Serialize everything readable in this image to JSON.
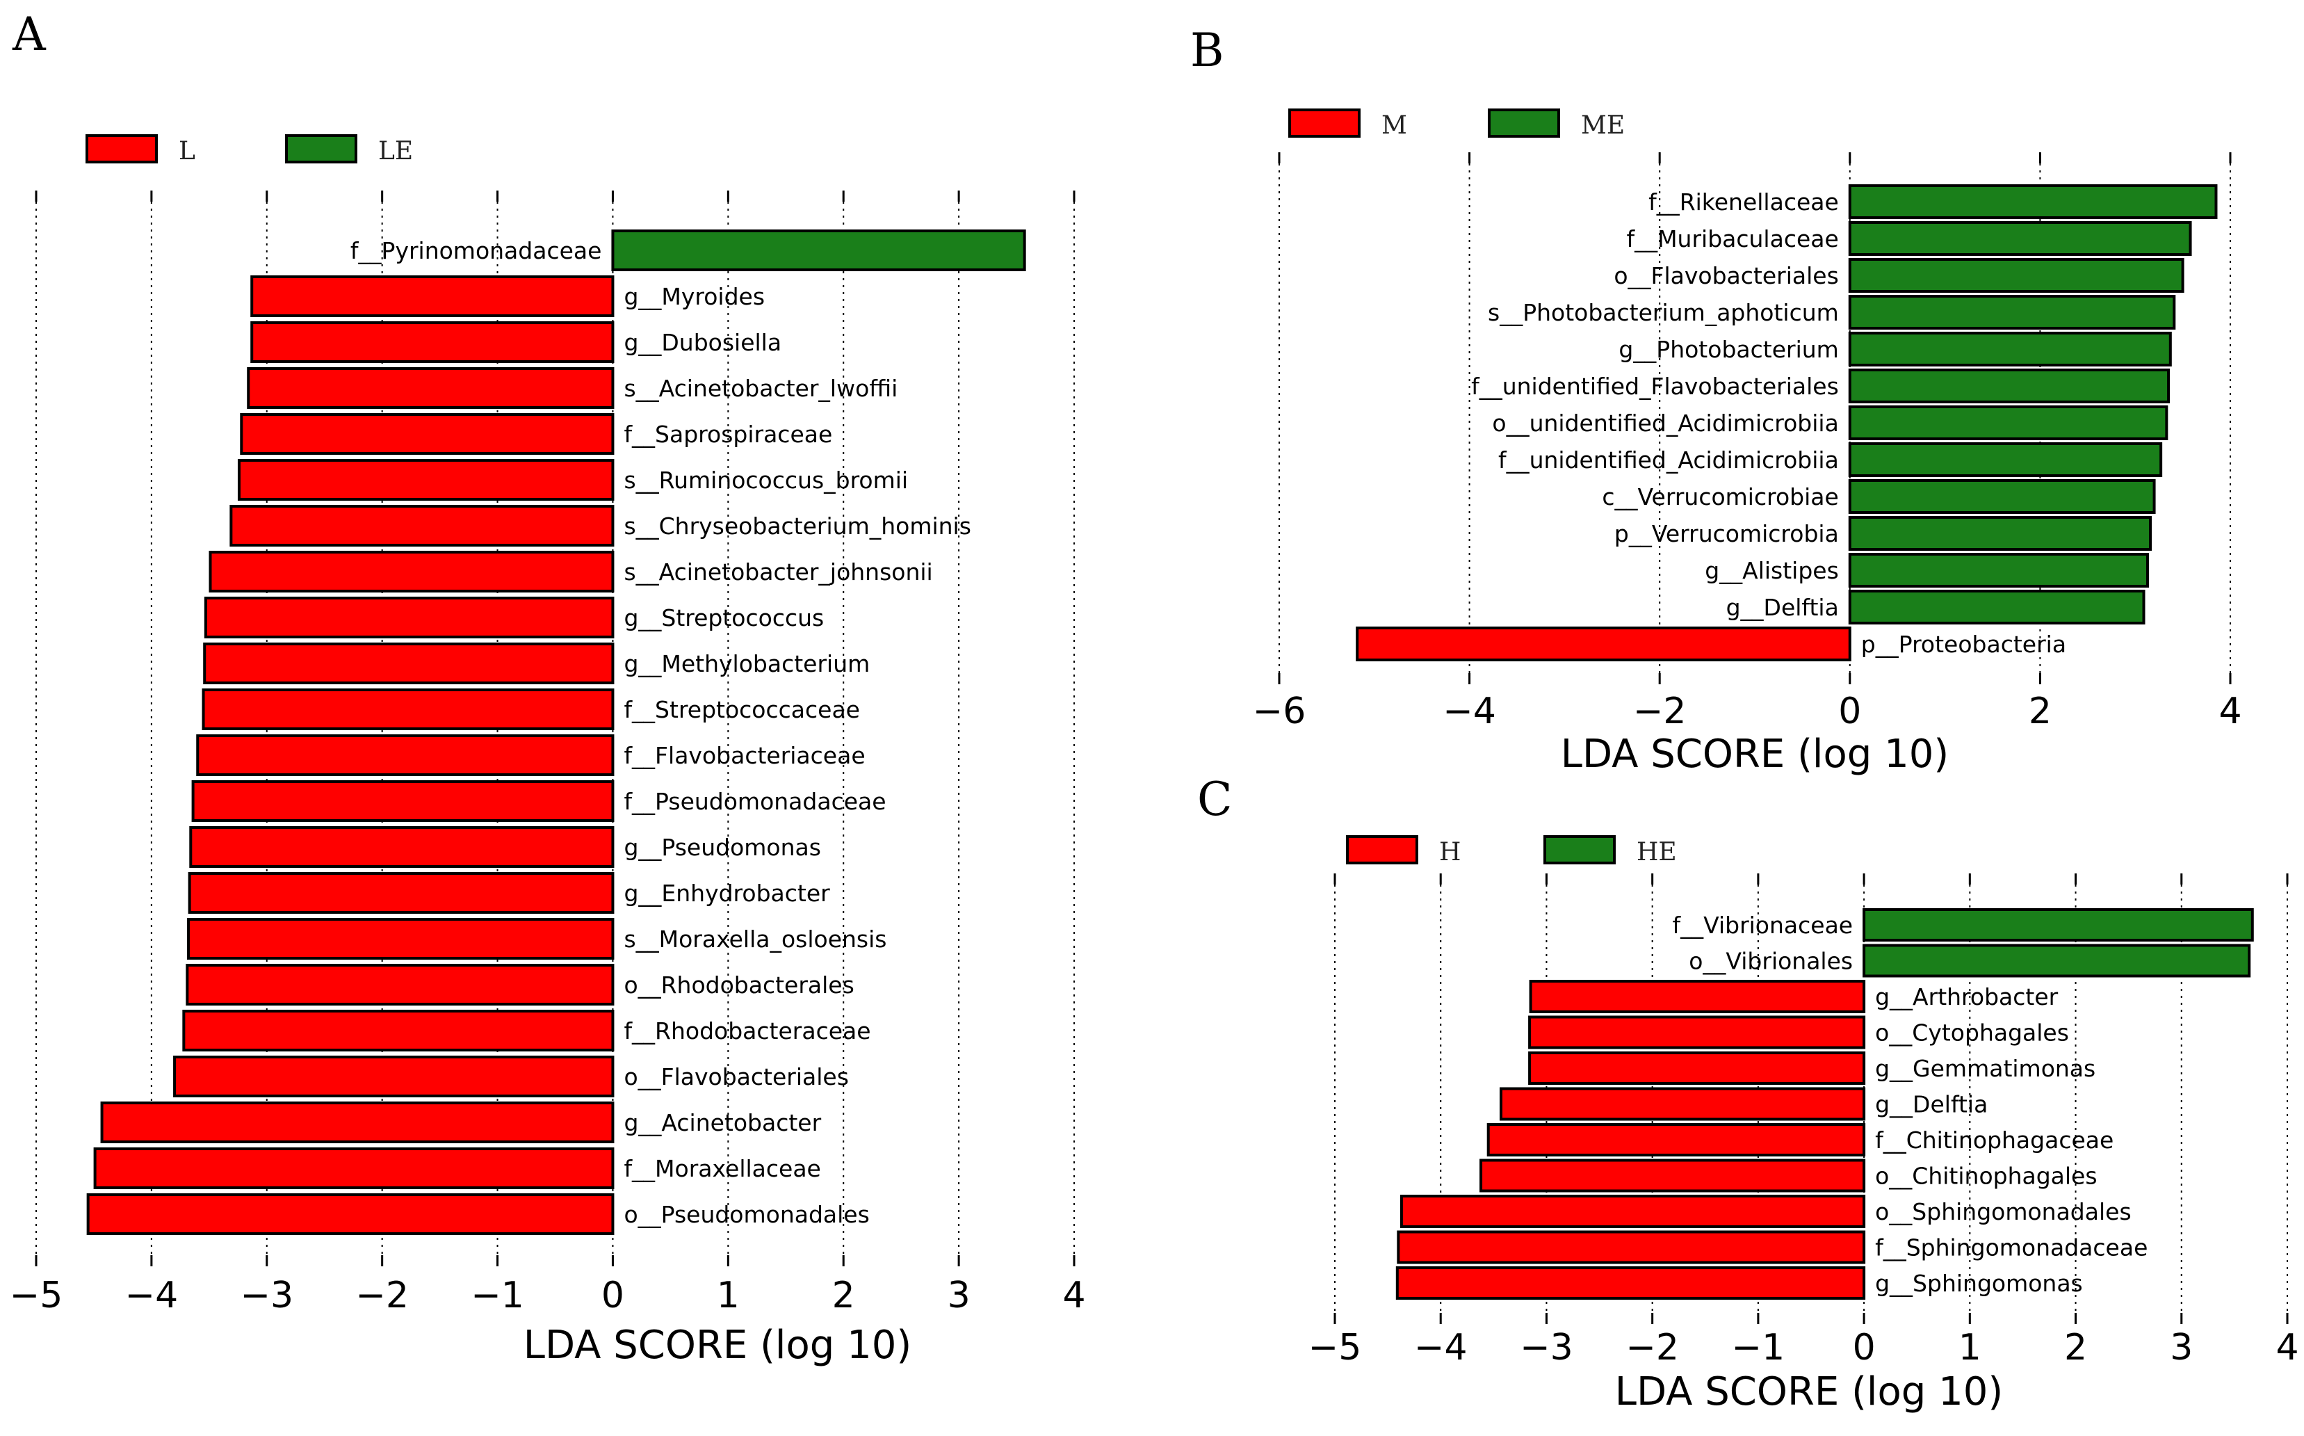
{
  "colors": {
    "negative": "#FF0000",
    "positive": "#1A7F1A",
    "edge": "#000000"
  },
  "chart_data": [
    {
      "id": "A",
      "type": "bar",
      "orientation": "horizontal",
      "panel_label": "A",
      "xlabel": "LDA SCORE (log 10)",
      "xlim": [
        -5,
        4
      ],
      "xticks": [
        -5,
        -4,
        -3,
        -2,
        -1,
        0,
        1,
        2,
        3,
        4
      ],
      "xtick_labels": [
        "−5",
        "−4",
        "−3",
        "−2",
        "−1",
        "0",
        "1",
        "2",
        "3",
        "4"
      ],
      "grid": true,
      "legend": [
        {
          "label": "L",
          "color": "#FF0000"
        },
        {
          "label": "LE",
          "color": "#1A7F1A"
        }
      ],
      "categories": [
        "f__Pyrinomonadaceae",
        "g__Myroides",
        "g__Dubosiella",
        "s__Acinetobacter_lwoffii",
        "f__Saprospiraceae",
        "s__Ruminococcus_bromii",
        "s__Chryseobacterium_hominis",
        "s__Acinetobacter_johnsonii",
        "g__Streptococcus",
        "g__Methylobacterium",
        "f__Streptococcaceae",
        "f__Flavobacteriaceae",
        "f__Pseudomonadaceae",
        "g__Pseudomonas",
        "g__Enhydrobacter",
        "s__Moraxella_osloensis",
        "o__Rhodobacterales",
        "f__Rhodobacteraceae",
        "o__Flavobacteriales",
        "g__Acinetobacter",
        "f__Moraxellaceae",
        "o__Pseudomonadales"
      ],
      "values": [
        3.57,
        -3.13,
        -3.13,
        -3.16,
        -3.22,
        -3.24,
        -3.31,
        -3.49,
        -3.53,
        -3.54,
        -3.55,
        -3.6,
        -3.64,
        -3.66,
        -3.67,
        -3.68,
        -3.69,
        -3.72,
        -3.8,
        -4.43,
        -4.49,
        -4.55
      ]
    },
    {
      "id": "B",
      "type": "bar",
      "orientation": "horizontal",
      "panel_label": "B",
      "xlabel": "LDA SCORE (log 10)",
      "xlim": [
        -6,
        4
      ],
      "xticks": [
        -6,
        -4,
        -2,
        0,
        2,
        4
      ],
      "xtick_labels": [
        "−6",
        "−4",
        "−2",
        "0",
        "2",
        "4"
      ],
      "grid": true,
      "legend": [
        {
          "label": "M",
          "color": "#FF0000"
        },
        {
          "label": "ME",
          "color": "#1A7F1A"
        }
      ],
      "categories": [
        "f__Rikenellaceae",
        "f__Muribaculaceae",
        "o__Flavobacteriales",
        "s__Photobacterium_aphoticum",
        "g__Photobacterium",
        "f__unidentified_Flavobacteriales",
        "o__unidentified_Acidimicrobiia",
        "f__unidentified_Acidimicrobiia",
        "c__Verrucomicrobiae",
        "p__Verrucomicrobia",
        "g__Alistipes",
        "g__Delftia",
        "p__Proteobacteria"
      ],
      "values": [
        3.85,
        3.58,
        3.5,
        3.41,
        3.37,
        3.35,
        3.33,
        3.27,
        3.2,
        3.16,
        3.13,
        3.09,
        -5.18
      ]
    },
    {
      "id": "C",
      "type": "bar",
      "orientation": "horizontal",
      "panel_label": "C",
      "xlabel": "LDA SCORE (log 10)",
      "xlim": [
        -5,
        4
      ],
      "xticks": [
        -5,
        -4,
        -3,
        -2,
        -1,
        0,
        1,
        2,
        3,
        4
      ],
      "xtick_labels": [
        "−5",
        "−4",
        "−3",
        "−2",
        "−1",
        "0",
        "1",
        "2",
        "3",
        "4"
      ],
      "grid": true,
      "legend": [
        {
          "label": "H",
          "color": "#FF0000"
        },
        {
          "label": "HE",
          "color": "#1A7F1A"
        }
      ],
      "categories": [
        "f__Vibrionaceae",
        "o__Vibrionales",
        "g__Arthrobacter",
        "o__Cytophagales",
        "g__Gemmatimonas",
        "g__Delftia",
        "f__Chitinophagaceae",
        "o__Chitinophagales",
        "o__Sphingomonadales",
        "f__Sphingomonadaceae",
        "g__Sphingomonas"
      ],
      "values": [
        3.67,
        3.64,
        -3.15,
        -3.16,
        -3.16,
        -3.43,
        -3.55,
        -3.62,
        -4.37,
        -4.4,
        -4.41
      ]
    }
  ]
}
